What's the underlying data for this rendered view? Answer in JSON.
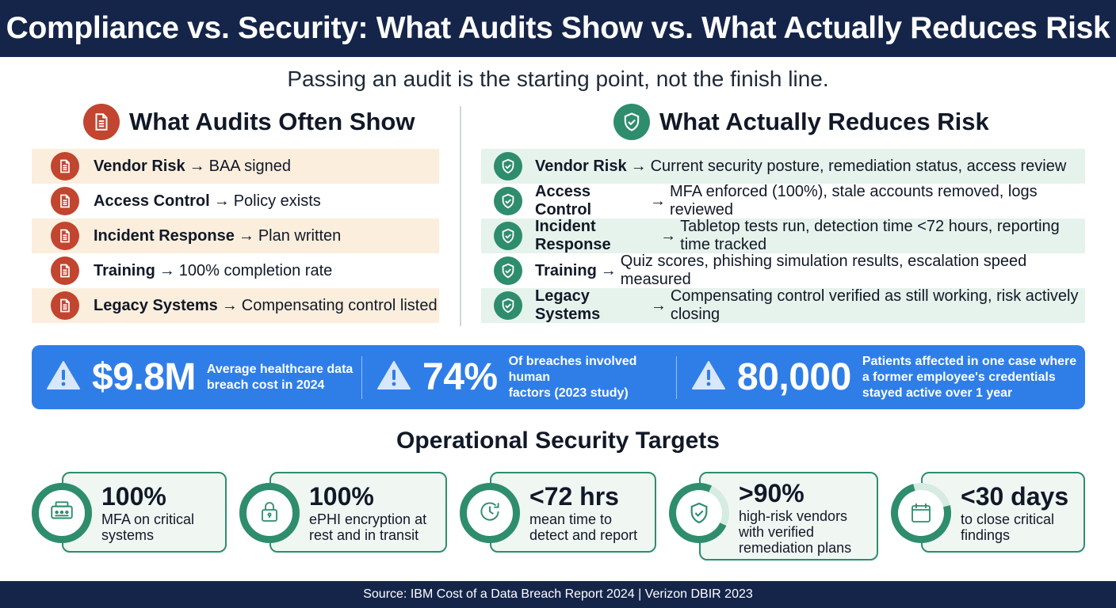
{
  "title": "Compliance vs. Security: What Audits Show vs. What Actually Reduces Risk",
  "subtitle": "Passing an audit is the starting point, not the finish line.",
  "colors": {
    "navy": "#15254a",
    "red": "#c2452f",
    "green": "#2e8d6c",
    "blue": "#2f7ee8",
    "peach": "#fbeedd",
    "mint": "#e6f3ec"
  },
  "audits": {
    "heading": "What Audits Often Show",
    "icon": "document-icon",
    "items": [
      {
        "term": "Vendor Risk",
        "text": "BAA signed"
      },
      {
        "term": "Access Control",
        "text": "Policy exists"
      },
      {
        "term": "Incident Response",
        "text": "Plan written"
      },
      {
        "term": "Training",
        "text": "100% completion rate"
      },
      {
        "term": "Legacy Systems",
        "text": "Compensating control listed"
      }
    ]
  },
  "risk": {
    "heading": "What Actually Reduces Risk",
    "icon": "shield-check-icon",
    "items": [
      {
        "term": "Vendor Risk",
        "text": "Current security posture, remediation status, access review"
      },
      {
        "term": "Access Control",
        "text": "MFA enforced (100%), stale accounts removed, logs reviewed"
      },
      {
        "term": "Incident Response",
        "text": "Tabletop tests run, detection time <72 hours, reporting time tracked"
      },
      {
        "term": "Training",
        "text": "Quiz scores, phishing simulation results, escalation speed measured"
      },
      {
        "term": "Legacy Systems",
        "text": "Compensating control verified as still working, risk actively closing"
      }
    ]
  },
  "arrow": "→",
  "stats": [
    {
      "value": "$9.8M",
      "desc1": "Average healthcare data",
      "desc2": "breach cost in 2024",
      "desc3": ""
    },
    {
      "value": "74%",
      "desc1": "Of breaches involved human",
      "desc2": "factors (2023 study)",
      "desc3": ""
    },
    {
      "value": "80,000",
      "desc1": "Patients affected in one case where",
      "desc2": "a former employee's credentials",
      "desc3": "stayed active over 1 year"
    }
  ],
  "ops": {
    "title": "Operational Security Targets",
    "targets": [
      {
        "value": "100%",
        "label1": "MFA on critical",
        "label2": "systems",
        "label3": "",
        "icon": "mfa-keypad-icon",
        "progress": 1.0
      },
      {
        "value": "100%",
        "label1": "ePHI encryption at",
        "label2": "rest and in transit",
        "label3": "",
        "icon": "lock-icon",
        "progress": 1.0
      },
      {
        "value": "<72 hrs",
        "label1": "mean time to",
        "label2": "detect and report",
        "label3": "",
        "icon": "clock-icon",
        "progress": 1.0
      },
      {
        "value": ">90%",
        "label1": "high-risk vendors",
        "label2": "with verified",
        "label3": "remediation plans",
        "icon": "shield-check-icon",
        "progress": 0.9
      },
      {
        "value": "<30 days",
        "label1": "to close critical",
        "label2": "findings",
        "label3": "",
        "icon": "calendar-icon",
        "progress": 0.9
      }
    ]
  },
  "footer": "Source: IBM Cost of a Data Breach Report 2024 | Verizon DBIR 2023"
}
